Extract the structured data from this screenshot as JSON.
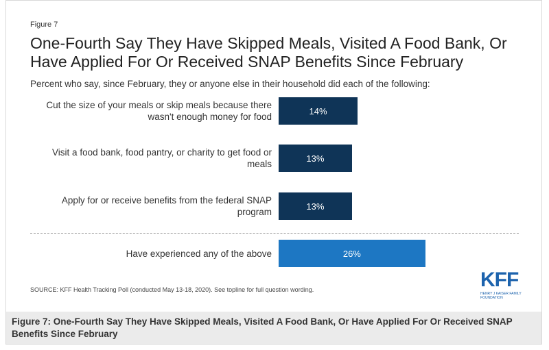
{
  "chart_data": {
    "type": "bar",
    "figure_label": "Figure 7",
    "title": "One-Fourth Say They Have Skipped Meals, Visited A Food Bank, Or Have Applied For Or Received SNAP Benefits Since February",
    "subtitle": "Percent who say, since February, they or anyone else in their household did each of the following:",
    "categories": [
      "Cut the size of your meals or skip meals because there wasn't enough money for food",
      "Visit a food bank, food pantry, or charity to get food or meals",
      "Apply for or receive benefits from the federal SNAP program",
      "Have experienced any of the above"
    ],
    "values": [
      14,
      13,
      13,
      26
    ],
    "value_labels": [
      "14%",
      "13%",
      "13%",
      "26%"
    ],
    "colors": [
      "#0f3457",
      "#0f3457",
      "#0f3457",
      "#1d77c3"
    ],
    "source": "SOURCE: KFF Health Tracking Poll (conducted May 13-18, 2020). See topline for full question wording.",
    "logo": "KFF",
    "logo_subtext": "HENRY J KAISER FAMILY FOUNDATION"
  },
  "caption": "Figure 7: One-Fourth Say They Have Skipped Meals, Visited A Food Bank, Or Have Applied For Or Received SNAP Benefits Since February"
}
